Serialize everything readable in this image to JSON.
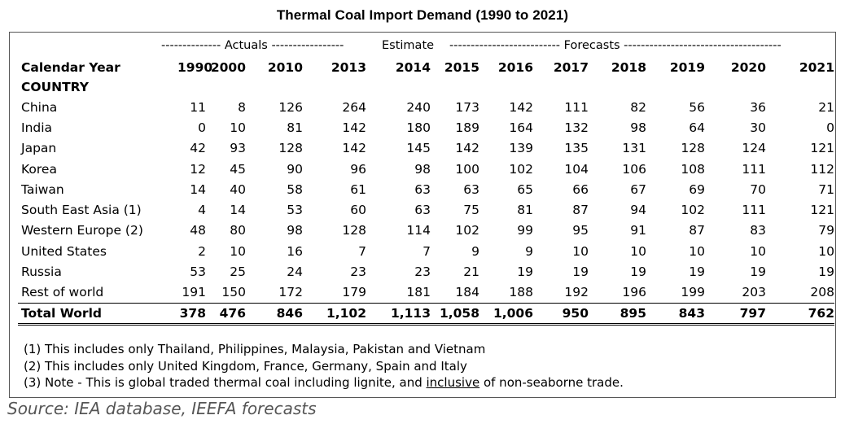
{
  "chart_data": {
    "type": "table",
    "title": "Thermal Coal Import Demand (1990 to 2021)",
    "periods": [
      {
        "label": "-------------- Actuals -----------------"
      },
      {
        "label": "Estimate"
      },
      {
        "label": "-------------------------- Forecasts -------------------------------------"
      }
    ],
    "header_label": "Calendar Year",
    "country_label": "COUNTRY",
    "years": [
      "1990",
      "2000",
      "2010",
      "2013",
      "2014",
      "2015",
      "2016",
      "2017",
      "2018",
      "2019",
      "2020",
      "2021"
    ],
    "rows": [
      {
        "country": "China",
        "values": [
          "11",
          "8",
          "126",
          "264",
          "240",
          "173",
          "142",
          "111",
          "82",
          "56",
          "36",
          "21"
        ]
      },
      {
        "country": "India",
        "values": [
          "0",
          "10",
          "81",
          "142",
          "180",
          "189",
          "164",
          "132",
          "98",
          "64",
          "30",
          "0"
        ]
      },
      {
        "country": "Japan",
        "values": [
          "42",
          "93",
          "128",
          "142",
          "145",
          "142",
          "139",
          "135",
          "131",
          "128",
          "124",
          "121"
        ]
      },
      {
        "country": "Korea",
        "values": [
          "12",
          "45",
          "90",
          "96",
          "98",
          "100",
          "102",
          "104",
          "106",
          "108",
          "111",
          "112"
        ]
      },
      {
        "country": "Taiwan",
        "values": [
          "14",
          "40",
          "58",
          "61",
          "63",
          "63",
          "65",
          "66",
          "67",
          "69",
          "70",
          "71"
        ]
      },
      {
        "country": "South East Asia (1)",
        "values": [
          "4",
          "14",
          "53",
          "60",
          "63",
          "75",
          "81",
          "87",
          "94",
          "102",
          "111",
          "121"
        ]
      },
      {
        "country": "Western Europe (2)",
        "values": [
          "48",
          "80",
          "98",
          "128",
          "114",
          "102",
          "99",
          "95",
          "91",
          "87",
          "83",
          "79"
        ]
      },
      {
        "country": "United States",
        "values": [
          "2",
          "10",
          "16",
          "7",
          "7",
          "9",
          "9",
          "10",
          "10",
          "10",
          "10",
          "10"
        ]
      },
      {
        "country": "Russia",
        "values": [
          "53",
          "25",
          "24",
          "23",
          "23",
          "21",
          "19",
          "19",
          "19",
          "19",
          "19",
          "19"
        ]
      },
      {
        "country": "Rest of world",
        "values": [
          "191",
          "150",
          "172",
          "179",
          "181",
          "184",
          "188",
          "192",
          "196",
          "199",
          "203",
          "208"
        ]
      }
    ],
    "total": {
      "country": "Total World",
      "values": [
        "378",
        "476",
        "846",
        "1,102",
        "1,113",
        "1,058",
        "1,006",
        "950",
        "895",
        "843",
        "797",
        "762"
      ]
    }
  },
  "notes": {
    "note1": "(1) This includes only Thailand, Philippines, Malaysia, Pakistan and Vietnam",
    "note2": "(2) This includes only United Kingdom, France, Germany, Spain and Italy",
    "note3_before": "(3) Note - This is global traded thermal coal including lignite, and ",
    "note3_underlined": "inclusive",
    "note3_after": " of non-seaborne trade."
  },
  "source": "Source: IEA database, IEEFA forecasts"
}
